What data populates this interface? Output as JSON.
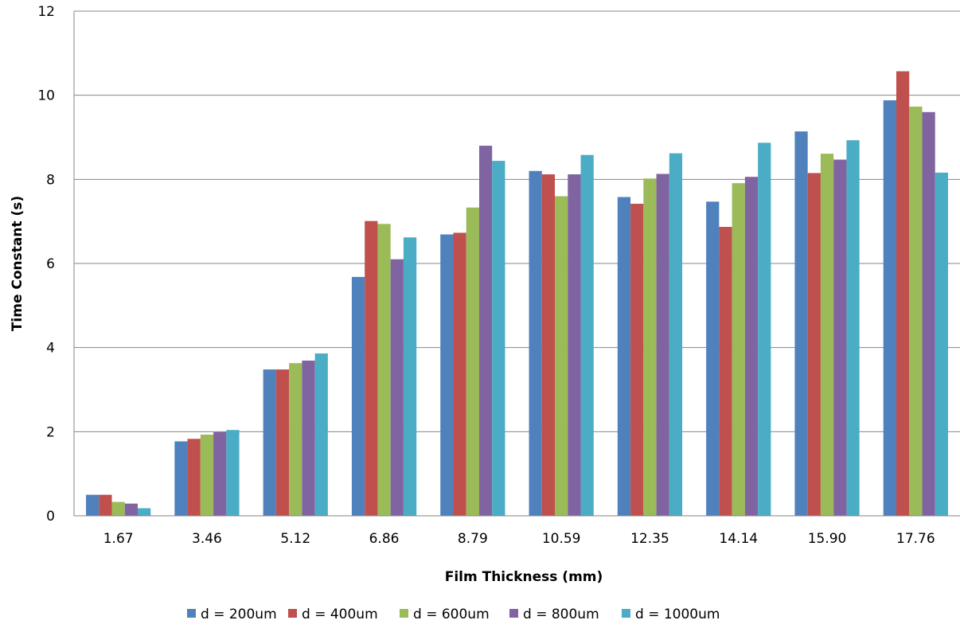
{
  "chart_data": {
    "type": "bar",
    "xlabel": "Film Thickness (mm)",
    "ylabel": "Time Constant (s)",
    "ylim": [
      0,
      12
    ],
    "yticks": [
      0,
      2,
      4,
      6,
      8,
      10,
      12
    ],
    "grid": "horizontal",
    "legend_position": "bottom",
    "categories": [
      "1.67",
      "3.46",
      "5.12",
      "6.86",
      "8.79",
      "10.59",
      "12.35",
      "14.14",
      "15.90",
      "17.76"
    ],
    "series": [
      {
        "name": "d = 200um",
        "color": "#4F81BD",
        "values": [
          0.5,
          1.77,
          3.48,
          5.68,
          6.69,
          8.2,
          7.58,
          7.47,
          9.14,
          9.88
        ]
      },
      {
        "name": "d = 400um",
        "color": "#C0504D",
        "values": [
          0.5,
          1.83,
          3.48,
          7.01,
          6.73,
          8.12,
          7.42,
          6.87,
          8.15,
          10.57
        ]
      },
      {
        "name": "d = 600um",
        "color": "#9BBB59",
        "values": [
          0.33,
          1.93,
          3.63,
          6.94,
          7.33,
          7.6,
          8.02,
          7.91,
          8.61,
          9.73
        ]
      },
      {
        "name": "d = 800um",
        "color": "#8064A2",
        "values": [
          0.29,
          1.99,
          3.69,
          6.1,
          8.8,
          8.12,
          8.13,
          8.06,
          8.47,
          9.6
        ]
      },
      {
        "name": "d = 1000um",
        "color": "#4BACC6",
        "values": [
          0.18,
          2.04,
          3.86,
          6.62,
          8.44,
          8.58,
          8.62,
          8.87,
          8.93,
          8.16
        ]
      }
    ]
  }
}
